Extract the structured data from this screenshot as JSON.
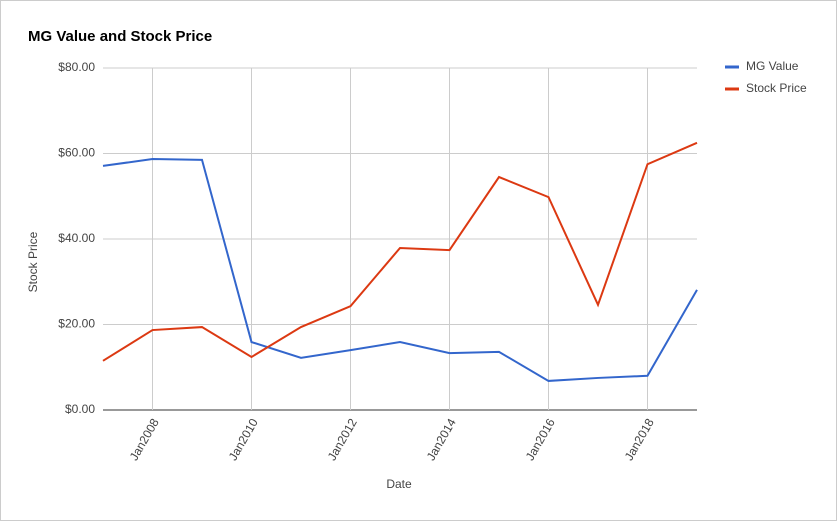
{
  "chart_data": {
    "type": "line",
    "title": "MG Value and Stock Price",
    "x_label": "Date",
    "y_label": "Stock Price",
    "categories": [
      null,
      "Jan2008",
      null,
      "Jan2010",
      null,
      "Jan2012",
      null,
      "Jan2014",
      null,
      "Jan2016",
      null,
      "Jan2018",
      null
    ],
    "series": [
      {
        "name": "MG Value",
        "color": "#3366cc",
        "values": [
          57.1,
          58.7,
          58.5,
          15.9,
          12.2,
          14.0,
          15.9,
          13.3,
          13.6,
          6.8,
          7.5,
          8.0,
          28.1
        ]
      },
      {
        "name": "Stock Price",
        "color": "#dc3912",
        "values": [
          11.5,
          18.7,
          19.4,
          12.4,
          19.4,
          24.3,
          37.9,
          37.4,
          54.5,
          49.8,
          24.6,
          57.5,
          62.5
        ]
      }
    ],
    "ylim": [
      0,
      80
    ],
    "yticks": [
      {
        "value": 0,
        "label": "$0.00"
      },
      {
        "value": 20,
        "label": "$20.00"
      },
      {
        "value": 40,
        "label": "$40.00"
      },
      {
        "value": 60,
        "label": "$60.00"
      },
      {
        "value": 80,
        "label": "$80.00"
      }
    ],
    "grid": true,
    "legend": "right"
  }
}
